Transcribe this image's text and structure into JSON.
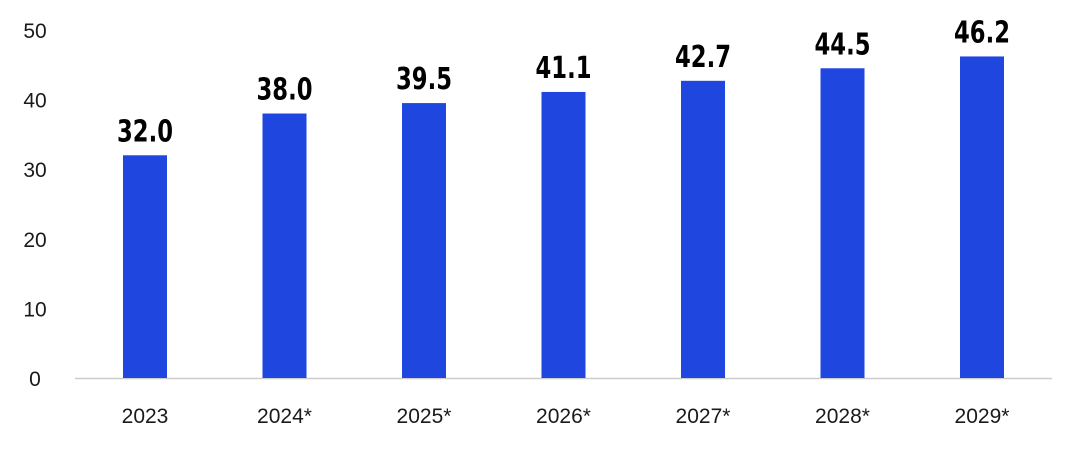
{
  "chart_data": {
    "type": "bar",
    "categories": [
      "2023",
      "2024*",
      "2025*",
      "2026*",
      "2027*",
      "2028*",
      "2029*"
    ],
    "values": [
      32.0,
      38.0,
      39.5,
      41.1,
      42.7,
      44.5,
      46.2
    ],
    "value_labels": [
      "32.0",
      "38.0",
      "39.5",
      "41.1",
      "42.7",
      "44.5",
      "46.2"
    ],
    "y_ticks": [
      "0",
      "10",
      "20",
      "30",
      "40",
      "50"
    ],
    "ylim": [
      0,
      50
    ],
    "grid": false,
    "bar_color": "#1f47e0",
    "axis_color": "#cccccc"
  }
}
